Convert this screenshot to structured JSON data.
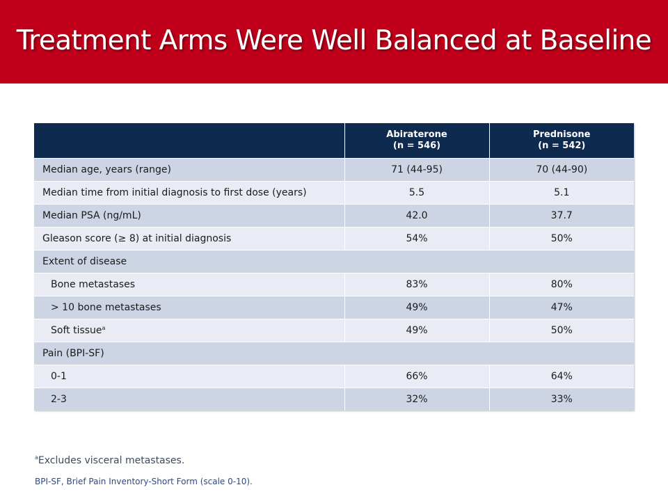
{
  "slide": {
    "title": "Treatment Arms Were Well Balanced at Baseline"
  },
  "table": {
    "headers": [
      {
        "name": "",
        "n": ""
      },
      {
        "name": "Abiraterone",
        "n": "(n = 546)"
      },
      {
        "name": "Prednisone",
        "n": "(n = 542)"
      }
    ],
    "rows": [
      {
        "label": "Median age, years (range)",
        "abiraterone": "71 (44-95)",
        "prednisone": "70 (44-90)"
      },
      {
        "label": "Median time from initial diagnosis to first dose (years)",
        "abiraterone": "5.5",
        "prednisone": "5.1"
      },
      {
        "label": "Median PSA (ng/mL)",
        "abiraterone": "42.0",
        "prednisone": "37.7"
      },
      {
        "label": "Gleason score (≥ 8) at initial diagnosis",
        "abiraterone": "54%",
        "prednisone": "50%"
      },
      {
        "label": "Extent of disease",
        "abiraterone": "",
        "prednisone": ""
      },
      {
        "label": "Bone metastases",
        "abiraterone": "83%",
        "prednisone": "80%"
      },
      {
        "label": "> 10 bone metastases",
        "abiraterone": "49%",
        "prednisone": "47%"
      },
      {
        "label": "Soft tissue",
        "label_sup": "a",
        "abiraterone": "49%",
        "prednisone": "50%"
      },
      {
        "label": "Pain (BPI-SF)",
        "abiraterone": "",
        "prednisone": ""
      },
      {
        "label": "0-1",
        "abiraterone": "66%",
        "prednisone": "64%"
      },
      {
        "label": "2-3",
        "abiraterone": "32%",
        "prednisone": "33%"
      }
    ]
  },
  "footnotes": {
    "a_marker": "a",
    "a_text": "Excludes visceral metastases.",
    "abbreviation": "BPI-SF, Brief Pain Inventory-Short Form (scale 0-10)."
  },
  "colors": {
    "title_bar": "#c0001a",
    "table_header": "#0e2a4f",
    "row_dark": "#cdd5e5",
    "row_light": "#e9ecf4"
  }
}
